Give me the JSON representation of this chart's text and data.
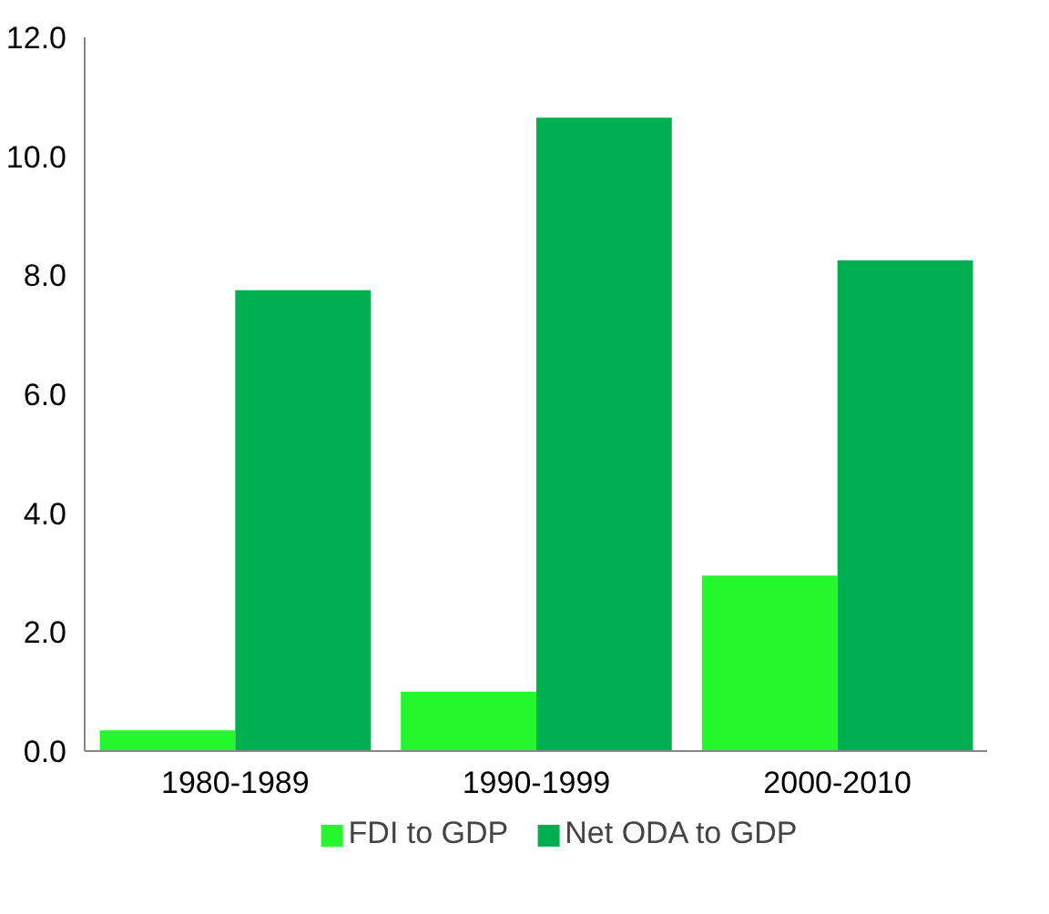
{
  "chart_data": {
    "type": "bar",
    "categories": [
      "1980-1989",
      "1990-1999",
      "2000-2010"
    ],
    "series": [
      {
        "name": "FDI to GDP",
        "color": "#24f82c",
        "values": [
          0.35,
          1.0,
          2.95
        ]
      },
      {
        "name": "Net ODA to GDP",
        "color": "#00b050",
        "values": [
          7.75,
          10.65,
          8.25
        ]
      }
    ],
    "ylim": [
      0,
      12
    ],
    "yticks": [
      {
        "value": 0,
        "label": "0.0"
      },
      {
        "value": 2,
        "label": "2.0"
      },
      {
        "value": 4,
        "label": "4.0"
      },
      {
        "value": 6,
        "label": "6.0"
      },
      {
        "value": 8,
        "label": "8.0"
      },
      {
        "value": 10,
        "label": "10.0"
      },
      {
        "value": 12,
        "label": "12.0"
      }
    ],
    "grid": false,
    "legend": "bottom"
  }
}
